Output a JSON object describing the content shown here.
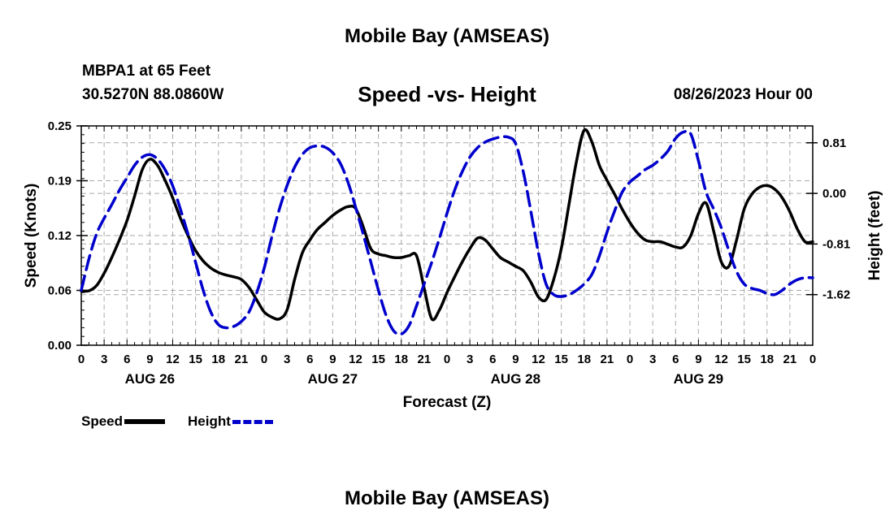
{
  "header": {
    "title": "Mobile Bay (AMSEAS)",
    "station": "MBPA1 at 65 Feet",
    "coords": "30.5270N  88.0860W",
    "subtitle": "Speed -vs- Height",
    "datetime": "08/26/2023 Hour 00"
  },
  "footer": {
    "title": "Mobile Bay (AMSEAS)"
  },
  "legend": {
    "speed_label": "Speed",
    "height_label": "Height"
  },
  "colors": {
    "speed": "#000000",
    "height": "#0000cc",
    "grid": "#aaaaaa"
  },
  "chart_data": {
    "type": "line",
    "xlabel": "Forecast (Z)",
    "ylabel": "Speed (Knots)",
    "y2label": "Height (feet)",
    "x_range_hours": [
      0,
      96
    ],
    "x_tick_step_hours": 3,
    "x_tick_labels": [
      "0",
      "3",
      "6",
      "9",
      "12",
      "15",
      "18",
      "21"
    ],
    "day_labels": [
      {
        "hour": 9,
        "label": "AUG 26"
      },
      {
        "hour": 33,
        "label": "AUG 27"
      },
      {
        "hour": 57,
        "label": "AUG 28"
      },
      {
        "hour": 81,
        "label": "AUG 29"
      }
    ],
    "ylim": [
      0.0,
      0.25
    ],
    "y_ticks": [
      "0.00",
      "0.06",
      "0.12",
      "0.19",
      "0.25"
    ],
    "y_tick_values": [
      0.0,
      0.0625,
      0.125,
      0.1875,
      0.25
    ],
    "y2lim": [
      -2.43,
      1.08
    ],
    "y2_ticks": [
      "-1.62",
      "-0.81",
      "0.00",
      "0.81"
    ],
    "y2_tick_values": [
      -1.62,
      -0.81,
      0.0,
      0.81
    ],
    "grid": true,
    "series": [
      {
        "name": "Speed",
        "style": "solid",
        "axis": "left",
        "x": [
          0,
          1,
          2,
          3,
          4,
          5,
          6,
          7,
          8,
          9,
          10,
          11,
          12,
          13,
          14,
          15,
          16,
          17,
          18,
          19,
          20,
          21,
          22,
          23,
          24,
          25,
          26,
          27,
          28,
          29,
          30,
          31,
          32,
          33,
          34,
          35,
          36,
          37,
          38,
          39,
          40,
          41,
          42,
          43,
          44,
          45,
          46,
          47,
          48,
          49,
          50,
          51,
          52,
          53,
          54,
          55,
          56,
          57,
          58,
          59,
          60,
          61,
          62,
          63,
          64,
          65,
          66,
          67,
          68,
          69,
          70,
          71,
          72,
          73,
          74,
          75,
          76,
          77,
          78,
          79,
          80,
          81,
          82,
          83,
          84,
          85,
          86,
          87,
          88,
          89,
          90,
          91,
          92,
          93,
          94,
          95,
          96
        ],
        "values": [
          0.062,
          0.062,
          0.068,
          0.082,
          0.1,
          0.12,
          0.142,
          0.17,
          0.2,
          0.212,
          0.205,
          0.188,
          0.168,
          0.145,
          0.125,
          0.108,
          0.096,
          0.088,
          0.083,
          0.08,
          0.078,
          0.075,
          0.066,
          0.052,
          0.038,
          0.032,
          0.03,
          0.04,
          0.075,
          0.105,
          0.12,
          0.132,
          0.14,
          0.148,
          0.154,
          0.158,
          0.156,
          0.135,
          0.11,
          0.104,
          0.102,
          0.1,
          0.1,
          0.102,
          0.102,
          0.065,
          0.03,
          0.04,
          0.06,
          0.078,
          0.095,
          0.11,
          0.122,
          0.12,
          0.11,
          0.1,
          0.095,
          0.09,
          0.085,
          0.072,
          0.055,
          0.052,
          0.075,
          0.11,
          0.16,
          0.21,
          0.245,
          0.232,
          0.205,
          0.188,
          0.172,
          0.155,
          0.14,
          0.128,
          0.12,
          0.118,
          0.118,
          0.115,
          0.112,
          0.112,
          0.125,
          0.15,
          0.162,
          0.13,
          0.095,
          0.09,
          0.12,
          0.155,
          0.172,
          0.18,
          0.182,
          0.178,
          0.168,
          0.152,
          0.132,
          0.118,
          0.118
        ]
      },
      {
        "name": "Height",
        "style": "dashed",
        "axis": "right",
        "x": [
          0,
          1,
          2,
          3,
          4,
          5,
          6,
          7,
          8,
          9,
          10,
          11,
          12,
          13,
          14,
          15,
          16,
          17,
          18,
          19,
          20,
          21,
          22,
          23,
          24,
          25,
          26,
          27,
          28,
          29,
          30,
          31,
          32,
          33,
          34,
          35,
          36,
          37,
          38,
          39,
          40,
          41,
          42,
          43,
          44,
          45,
          46,
          47,
          48,
          49,
          50,
          51,
          52,
          53,
          54,
          55,
          56,
          57,
          58,
          59,
          60,
          61,
          62,
          63,
          64,
          65,
          66,
          67,
          68,
          69,
          70,
          71,
          72,
          73,
          74,
          75,
          76,
          77,
          78,
          79,
          80,
          81,
          82,
          83,
          84,
          85,
          86,
          87,
          88,
          89,
          90,
          91,
          92,
          93,
          94,
          95,
          96
        ],
        "values": [
          -1.55,
          -1.05,
          -0.65,
          -0.4,
          -0.18,
          0.05,
          0.25,
          0.45,
          0.58,
          0.62,
          0.55,
          0.38,
          0.12,
          -0.25,
          -0.65,
          -1.1,
          -1.55,
          -1.9,
          -2.1,
          -2.15,
          -2.13,
          -2.05,
          -1.9,
          -1.6,
          -1.2,
          -0.7,
          -0.25,
          0.12,
          0.42,
          0.62,
          0.73,
          0.76,
          0.74,
          0.65,
          0.48,
          0.18,
          -0.22,
          -0.65,
          -1.1,
          -1.55,
          -1.95,
          -2.2,
          -2.25,
          -2.12,
          -1.8,
          -1.45,
          -1.1,
          -0.72,
          -0.32,
          0.05,
          0.35,
          0.58,
          0.73,
          0.82,
          0.87,
          0.9,
          0.9,
          0.8,
          0.35,
          -0.28,
          -0.95,
          -1.45,
          -1.62,
          -1.65,
          -1.62,
          -1.55,
          -1.45,
          -1.3,
          -1.0,
          -0.62,
          -0.28,
          0.02,
          0.18,
          0.28,
          0.38,
          0.45,
          0.55,
          0.68,
          0.88,
          0.98,
          0.95,
          0.52,
          0.02,
          -0.25,
          -0.55,
          -0.92,
          -1.25,
          -1.45,
          -1.52,
          -1.55,
          -1.6,
          -1.62,
          -1.55,
          -1.45,
          -1.38,
          -1.35,
          -1.35
        ]
      }
    ]
  }
}
